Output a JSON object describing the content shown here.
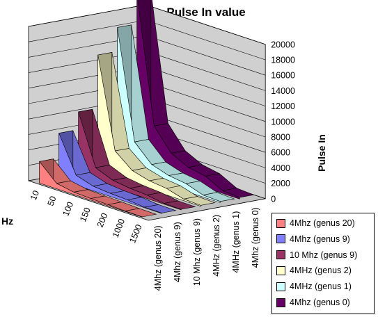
{
  "chart_data": {
    "type": "3d-ribbon",
    "title": "Hz vs Pulse In value",
    "xlabel": "Hz",
    "zlabel": "Pulse In",
    "categories": [
      "10",
      "50",
      "100",
      "150",
      "200",
      "1000",
      "1500"
    ],
    "ylim": [
      0,
      20000
    ],
    "yticks": [
      0,
      2000,
      4000,
      6000,
      8000,
      10000,
      12000,
      14000,
      16000,
      18000,
      20000
    ],
    "grid": true,
    "legend_position": "bottom-right",
    "series": [
      {
        "name": "4Mhz (genus 20)",
        "color": "#ff8080",
        "values": [
          2800,
          700,
          300,
          200,
          150,
          50,
          30
        ]
      },
      {
        "name": "4Mhz (genus 9)",
        "color": "#8080ff",
        "values": [
          6000,
          1300,
          600,
          400,
          300,
          80,
          50
        ]
      },
      {
        "name": "10 Mhz (genus 9)",
        "color": "#993366",
        "values": [
          8300,
          1800,
          900,
          600,
          450,
          100,
          70
        ]
      },
      {
        "name": "4MHz (genus 2)",
        "color": "#ffffcc",
        "values": [
          15200,
          3500,
          1700,
          1100,
          850,
          200,
          120
        ]
      },
      {
        "name": "4MHz (genus 1)",
        "color": "#ccffff",
        "values": [
          18300,
          4200,
          2000,
          1300,
          1000,
          250,
          150
        ]
      },
      {
        "name": "4Mhz (genus 0)",
        "color": "#660066",
        "values": [
          22200,
          5800,
          3000,
          1900,
          1500,
          350,
          200
        ]
      }
    ]
  }
}
